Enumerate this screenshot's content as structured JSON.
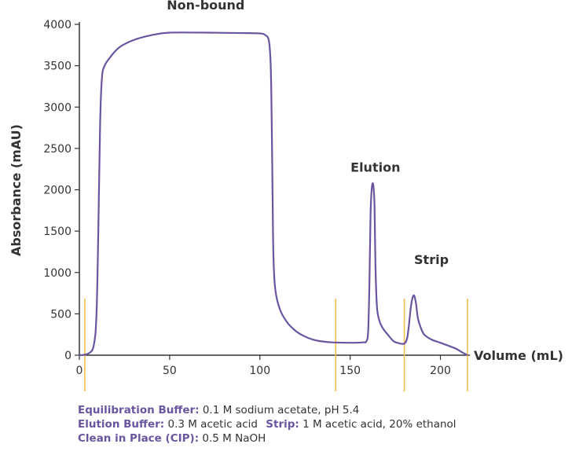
{
  "chart_data": {
    "type": "line",
    "title": "",
    "xlabel": "Volume (mL)",
    "ylabel": "Absorbance (mAU)",
    "xlim": [
      0,
      215
    ],
    "ylim": [
      0,
      4000
    ],
    "x_ticks": [
      0,
      50,
      100,
      150,
      200
    ],
    "y_ticks": [
      0,
      500,
      1000,
      1500,
      2000,
      2500,
      3000,
      3500,
      4000
    ],
    "grid": false,
    "line_color": "#6a56a0",
    "marker_color": "#f5c04a",
    "series": [
      {
        "name": "",
        "points": [
          [
            0,
            0
          ],
          [
            5,
            20
          ],
          [
            8,
            120
          ],
          [
            9.5,
            500
          ],
          [
            10.5,
            1500
          ],
          [
            11.5,
            2800
          ],
          [
            12.5,
            3350
          ],
          [
            14,
            3500
          ],
          [
            17,
            3600
          ],
          [
            22,
            3720
          ],
          [
            30,
            3810
          ],
          [
            40,
            3870
          ],
          [
            50,
            3900
          ],
          [
            70,
            3900
          ],
          [
            90,
            3895
          ],
          [
            100,
            3890
          ],
          [
            103,
            3870
          ],
          [
            105,
            3800
          ],
          [
            106,
            3500
          ],
          [
            106.5,
            2900
          ],
          [
            107,
            2000
          ],
          [
            107.5,
            1200
          ],
          [
            108.5,
            800
          ],
          [
            111,
            560
          ],
          [
            115,
            400
          ],
          [
            120,
            290
          ],
          [
            125,
            225
          ],
          [
            130,
            185
          ],
          [
            135,
            165
          ],
          [
            140,
            155
          ],
          [
            150,
            150
          ],
          [
            157,
            155
          ],
          [
            159,
            170
          ],
          [
            160,
            300
          ],
          [
            160.7,
            900
          ],
          [
            161.3,
            1700
          ],
          [
            162,
            2020
          ],
          [
            162.8,
            2060
          ],
          [
            163.5,
            1800
          ],
          [
            164,
            1100
          ],
          [
            164.8,
            600
          ],
          [
            166,
            430
          ],
          [
            168,
            330
          ],
          [
            171,
            245
          ],
          [
            174,
            170
          ],
          [
            177,
            145
          ],
          [
            180,
            140
          ],
          [
            181.5,
            200
          ],
          [
            182.5,
            350
          ],
          [
            183.5,
            560
          ],
          [
            184.5,
            690
          ],
          [
            185.5,
            720
          ],
          [
            186.5,
            620
          ],
          [
            187.5,
            450
          ],
          [
            189,
            340
          ],
          [
            191,
            250
          ],
          [
            195,
            190
          ],
          [
            200,
            150
          ],
          [
            205,
            110
          ],
          [
            209,
            75
          ],
          [
            212,
            35
          ],
          [
            215,
            0
          ]
        ]
      }
    ],
    "markers_x": [
      3,
      142,
      180,
      215
    ],
    "annotations": [
      {
        "text": "Non-bound",
        "x": 70,
        "y": 4180
      },
      {
        "text": "Elution",
        "x": 164,
        "y": 2220
      },
      {
        "text": "Strip",
        "x": 195,
        "y": 1100
      }
    ]
  },
  "legend": {
    "equilibration_key": "Equilibration Buffer:",
    "equilibration_value": "0.1 M sodium acetate, pH 5.4",
    "elution_key": "Elution Buffer:",
    "elution_value": "0.3 M acetic acid",
    "strip_key": "Strip:",
    "strip_value": "1 M acetic acid, 20% ethanol",
    "cip_key": "Clean in Place (CIP):",
    "cip_value": "0.5 M NaOH"
  }
}
